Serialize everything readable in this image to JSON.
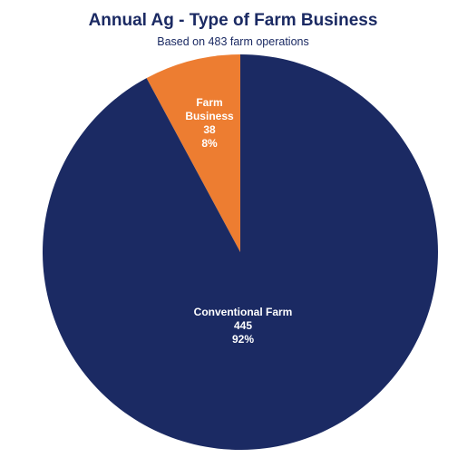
{
  "chart_data": {
    "type": "pie",
    "title": "Annual Ag - Type of Farm Business",
    "subtitle": "Based on 483 farm operations",
    "slices": [
      {
        "label_lines": [
          "Farm",
          "Business"
        ],
        "value": 38,
        "value_label": "38",
        "percent": "8%",
        "color": "#ed7d31"
      },
      {
        "label_lines": [
          "Conventional Farm"
        ],
        "value": 445,
        "value_label": "445",
        "percent": "92%",
        "color": "#1b2a63"
      }
    ]
  }
}
